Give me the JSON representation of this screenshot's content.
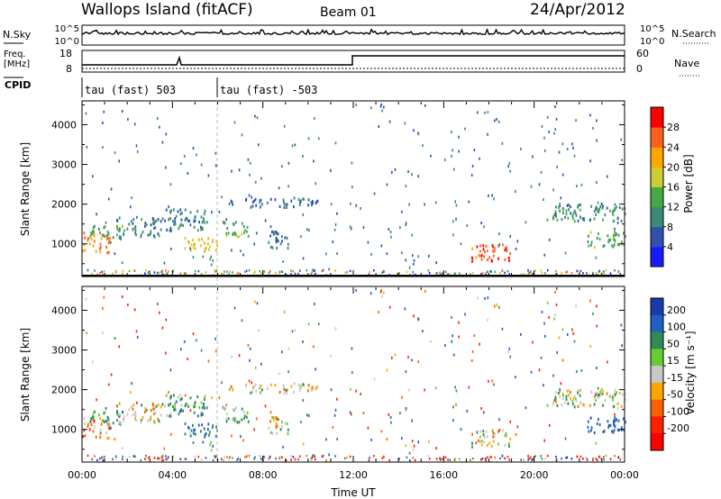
{
  "header": {
    "title_left": "Wallops Island (fitACF)",
    "title_center": "Beam 01",
    "title_right": "24/Apr/2012"
  },
  "strip": {
    "nsky_label": "N.Sky",
    "nsky_ticks": [
      "10^5",
      "10^0"
    ],
    "nsky_right_ticks": [
      "10^5",
      "10^0"
    ],
    "nsearch_label": "N.Search",
    "freq_label_1": "Freq.",
    "freq_label_2": "[MHz]",
    "freq_ticks": [
      "18",
      "8"
    ],
    "nave_ticks": [
      "60",
      "0"
    ],
    "nave_label": "Nave",
    "cpid_label": "CPID",
    "cpid_1": "tau (fast) 503",
    "cpid_2": "tau (fast) -503"
  },
  "axes": {
    "ylabel": "Slant Range [km]",
    "xlabel": "Time UT",
    "yticks": [
      "1000",
      "2000",
      "3000",
      "4000"
    ],
    "xticks": [
      "00:00",
      "04:00",
      "08:00",
      "12:00",
      "16:00",
      "20:00",
      "00:00"
    ]
  },
  "power_scale": {
    "label": "Power [dB]",
    "ticks": [
      "4",
      "8",
      "12",
      "16",
      "20",
      "24",
      "28"
    ],
    "colors": [
      "#1a1aff",
      "#3050b0",
      "#3a8a7a",
      "#44aa44",
      "#cccc33",
      "#ffa500",
      "#ff6020",
      "#ff0000"
    ]
  },
  "velocity_scale": {
    "label": "Velocity [m s⁻¹]",
    "ticks": [
      "200",
      "100",
      "50",
      "15",
      "-15",
      "-50",
      "-100",
      "-200"
    ],
    "colors": [
      "#1a3aa8",
      "#2060c0",
      "#2e8b57",
      "#66cc33",
      "#c8c8c8",
      "#ffa500",
      "#ff6000",
      "#ff2000",
      "#ff0000"
    ]
  },
  "chart_data": [
    {
      "type": "heatmap",
      "title": "Power",
      "xlabel": "Time UT",
      "ylabel": "Slant Range [km]",
      "xlim": [
        0,
        24
      ],
      "ylim": [
        200,
        4600
      ],
      "colorbar_label": "Power [dB]",
      "colorbar_range": [
        0,
        32
      ],
      "regions": [
        {
          "t": [
            0.0,
            1.2
          ],
          "r": [
            750,
            1300
          ],
          "value": 24
        },
        {
          "t": [
            0.3,
            1.8
          ],
          "r": [
            1100,
            1450
          ],
          "value": 14
        },
        {
          "t": [
            1.5,
            3.5
          ],
          "r": [
            1150,
            1650
          ],
          "value": 10
        },
        {
          "t": [
            3.5,
            5.5
          ],
          "r": [
            1300,
            1850
          ],
          "value": 9
        },
        {
          "t": [
            4.4,
            6.0
          ],
          "r": [
            800,
            1150
          ],
          "value": 20
        },
        {
          "t": [
            6.2,
            7.4
          ],
          "r": [
            1100,
            1550
          ],
          "value": 14
        },
        {
          "t": [
            6.4,
            10.4
          ],
          "r": [
            1900,
            2150
          ],
          "value": 8
        },
        {
          "t": [
            8.2,
            9.2
          ],
          "r": [
            850,
            1300
          ],
          "value": 8
        },
        {
          "t": [
            17.2,
            19.0
          ],
          "r": [
            550,
            1000
          ],
          "value": 27
        },
        {
          "t": [
            20.5,
            24.0
          ],
          "r": [
            1550,
            2000
          ],
          "value": 10
        },
        {
          "t": [
            22.3,
            24.0
          ],
          "r": [
            900,
            1300
          ],
          "value": 14
        }
      ]
    },
    {
      "type": "heatmap",
      "title": "Velocity",
      "xlabel": "Time UT",
      "ylabel": "Slant Range [km]",
      "xlim": [
        0,
        24
      ],
      "ylim": [
        200,
        4600
      ],
      "colorbar_label": "Velocity [m s⁻¹]",
      "colorbar_range": [
        -250,
        250
      ],
      "regions": [
        {
          "t": [
            0.0,
            1.2
          ],
          "r": [
            750,
            1300
          ],
          "value": -40
        },
        {
          "t": [
            0.3,
            1.8
          ],
          "r": [
            1100,
            1450
          ],
          "value": 60
        },
        {
          "t": [
            1.5,
            3.5
          ],
          "r": [
            1150,
            1650
          ],
          "value": 0
        },
        {
          "t": [
            3.5,
            5.5
          ],
          "r": [
            1300,
            1850
          ],
          "value": 40
        },
        {
          "t": [
            4.4,
            6.0
          ],
          "r": [
            800,
            1150
          ],
          "value": 80
        },
        {
          "t": [
            6.2,
            7.4
          ],
          "r": [
            1100,
            1550
          ],
          "value": 30
        },
        {
          "t": [
            6.4,
            10.4
          ],
          "r": [
            1900,
            2150
          ],
          "value": 0
        },
        {
          "t": [
            8.2,
            9.2
          ],
          "r": [
            850,
            1300
          ],
          "value": 0
        },
        {
          "t": [
            17.2,
            19.0
          ],
          "r": [
            550,
            1000
          ],
          "value": 0
        },
        {
          "t": [
            20.5,
            24.0
          ],
          "r": [
            1550,
            2000
          ],
          "value": 0
        },
        {
          "t": [
            22.3,
            24.0
          ],
          "r": [
            900,
            1300
          ],
          "value": 120
        }
      ]
    }
  ]
}
